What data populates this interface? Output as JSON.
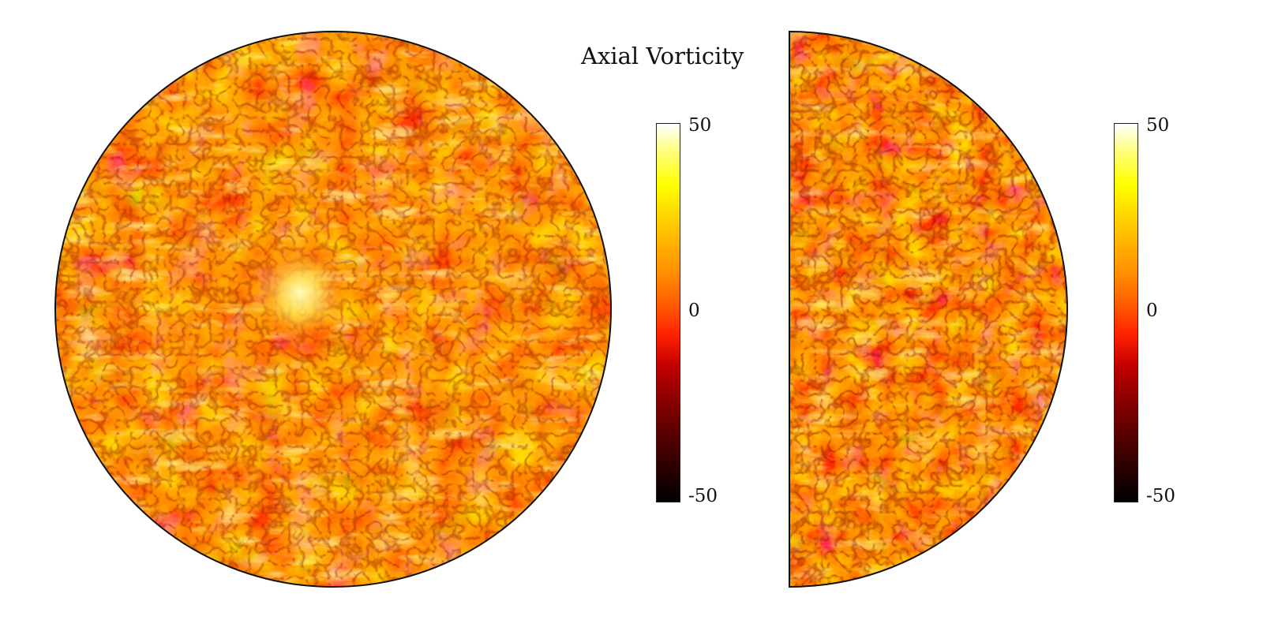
{
  "title": "Axial Vorticity",
  "colormap": {
    "name": "hot",
    "stops": [
      "#000000",
      "#3a0000",
      "#7a0000",
      "#c20000",
      "#ff2000",
      "#ff5a00",
      "#ff8c00",
      "#ffb000",
      "#ffd700",
      "#ffff00",
      "#ffff80",
      "#ffffff"
    ]
  },
  "panels": [
    {
      "id": "full-disk",
      "shape": "full circle",
      "colorbar": {
        "max": "50",
        "mid": "0",
        "min": "-50"
      }
    },
    {
      "id": "half-disk",
      "shape": "right half circle",
      "colorbar": {
        "max": "50",
        "mid": "0",
        "min": "-50"
      }
    }
  ]
}
